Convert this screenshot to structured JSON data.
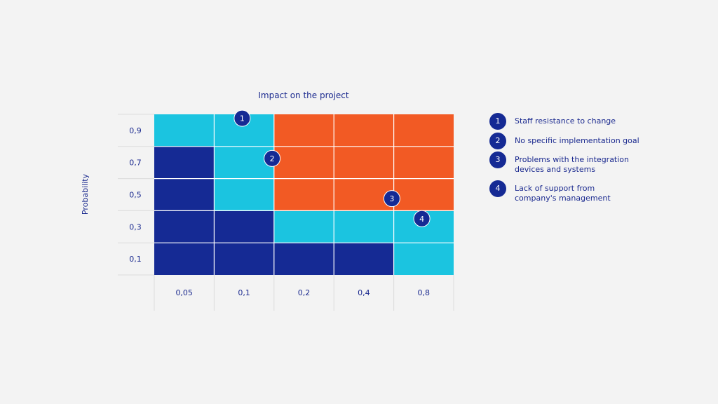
{
  "chart_data": {
    "type": "heatmap",
    "title": "Impact on the project",
    "xlabel": "",
    "ylabel": "Probability",
    "x_categories": [
      "0,05",
      "0,1",
      "0,2",
      "0,4",
      "0,8"
    ],
    "y_categories": [
      "0,9",
      "0,7",
      "0,5",
      "0,3",
      "0,1"
    ],
    "cells": [
      [
        "cyan",
        "cyan",
        "orange",
        "orange",
        "orange"
      ],
      [
        "navy",
        "cyan",
        "orange",
        "orange",
        "orange"
      ],
      [
        "navy",
        "cyan",
        "orange",
        "orange",
        "orange"
      ],
      [
        "navy",
        "navy",
        "cyan",
        "cyan",
        "cyan"
      ],
      [
        "navy",
        "navy",
        "navy",
        "navy",
        "cyan"
      ]
    ],
    "color_map": {
      "navy": "#152a94",
      "cyan": "#1bc4e0",
      "orange": "#f25a24"
    },
    "markers": [
      {
        "label": "1",
        "x": 0.2,
        "y": 0.9
      },
      {
        "label": "2",
        "x": 0.3,
        "y": 0.7
      },
      {
        "label": "3",
        "x": 0.7,
        "y": 0.5
      },
      {
        "label": "4",
        "x": 0.8,
        "y": 0.4
      }
    ]
  },
  "legend": [
    {
      "num": "1",
      "text": "Staff resistance to change"
    },
    {
      "num": "2",
      "text": "No specific implementation goal"
    },
    {
      "num": "3",
      "text": "Problems with the integration\ndevices and systems"
    },
    {
      "num": "4",
      "text": "Lack of support from\ncompany's management"
    }
  ],
  "colors": {
    "text": "#1b2a8f",
    "grid_line": "#dcdcdc",
    "background": "#f3f3f3"
  }
}
